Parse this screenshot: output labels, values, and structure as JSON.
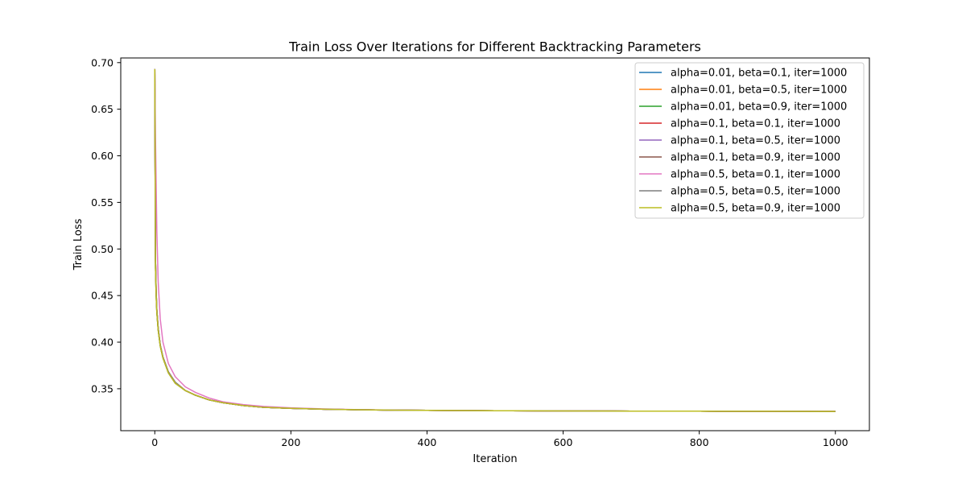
{
  "chart_data": {
    "type": "line",
    "title": "Train Loss Over Iterations for Different Backtracking Parameters",
    "xlabel": "Iteration",
    "ylabel": "Train Loss",
    "xlim": [
      -50,
      1050
    ],
    "ylim": [
      0.305,
      0.705
    ],
    "xticks": [
      0,
      200,
      400,
      600,
      800,
      1000
    ],
    "yticks": [
      0.35,
      0.4,
      0.45,
      0.5,
      0.55,
      0.6,
      0.65,
      0.7
    ],
    "ytick_labels": [
      "0.35",
      "0.40",
      "0.45",
      "0.50",
      "0.55",
      "0.60",
      "0.65",
      "0.70"
    ],
    "grid": false,
    "legend": "upper-right",
    "x": [
      0,
      1,
      2,
      3,
      5,
      8,
      12,
      20,
      30,
      45,
      60,
      80,
      100,
      130,
      160,
      200,
      250,
      300,
      350,
      400,
      450,
      500,
      600,
      700,
      800,
      900,
      1000
    ],
    "series": [
      {
        "name": "alpha=0.01, beta=0.1, iter=1000",
        "color": "#1f77b4",
        "values": [
          0.693,
          0.49,
          0.455,
          0.435,
          0.415,
          0.397,
          0.384,
          0.368,
          0.357,
          0.348,
          0.343,
          0.338,
          0.335,
          0.332,
          0.33,
          0.329,
          0.328,
          0.3275,
          0.327,
          0.3268,
          0.3266,
          0.3264,
          0.3262,
          0.326,
          0.3259,
          0.3258,
          0.3256
        ]
      },
      {
        "name": "alpha=0.01, beta=0.5, iter=1000",
        "color": "#ff7f0e",
        "values": [
          0.693,
          0.49,
          0.455,
          0.435,
          0.415,
          0.397,
          0.384,
          0.368,
          0.357,
          0.348,
          0.343,
          0.338,
          0.335,
          0.332,
          0.33,
          0.329,
          0.328,
          0.3275,
          0.327,
          0.3268,
          0.3266,
          0.3264,
          0.3262,
          0.326,
          0.3259,
          0.3258,
          0.3256
        ]
      },
      {
        "name": "alpha=0.01, beta=0.9, iter=1000",
        "color": "#2ca02c",
        "values": [
          0.693,
          0.48,
          0.45,
          0.432,
          0.413,
          0.396,
          0.383,
          0.367,
          0.356,
          0.348,
          0.343,
          0.338,
          0.335,
          0.332,
          0.33,
          0.329,
          0.328,
          0.3275,
          0.327,
          0.3268,
          0.3266,
          0.3264,
          0.3262,
          0.326,
          0.3259,
          0.3258,
          0.3256
        ]
      },
      {
        "name": "alpha=0.1, beta=0.1, iter=1000",
        "color": "#d62728",
        "values": [
          0.693,
          0.49,
          0.455,
          0.435,
          0.415,
          0.397,
          0.384,
          0.368,
          0.357,
          0.348,
          0.343,
          0.338,
          0.335,
          0.332,
          0.33,
          0.329,
          0.328,
          0.3275,
          0.327,
          0.3268,
          0.3266,
          0.3264,
          0.3262,
          0.326,
          0.3259,
          0.3258,
          0.3256
        ]
      },
      {
        "name": "alpha=0.1, beta=0.5, iter=1000",
        "color": "#9467bd",
        "values": [
          0.693,
          0.49,
          0.455,
          0.435,
          0.415,
          0.397,
          0.384,
          0.368,
          0.357,
          0.348,
          0.343,
          0.338,
          0.335,
          0.332,
          0.33,
          0.329,
          0.328,
          0.3275,
          0.327,
          0.3268,
          0.3266,
          0.3264,
          0.3262,
          0.326,
          0.3259,
          0.3258,
          0.3256
        ]
      },
      {
        "name": "alpha=0.1, beta=0.9, iter=1000",
        "color": "#8c564b",
        "values": [
          0.693,
          0.48,
          0.45,
          0.432,
          0.413,
          0.396,
          0.383,
          0.367,
          0.356,
          0.348,
          0.343,
          0.338,
          0.335,
          0.332,
          0.33,
          0.329,
          0.328,
          0.3275,
          0.327,
          0.3268,
          0.3266,
          0.3264,
          0.3262,
          0.326,
          0.3259,
          0.3258,
          0.3256
        ]
      },
      {
        "name": "alpha=0.5, beta=0.1, iter=1000",
        "color": "#e377c2",
        "values": [
          0.693,
          0.62,
          0.57,
          0.52,
          0.465,
          0.425,
          0.4,
          0.377,
          0.363,
          0.352,
          0.346,
          0.34,
          0.336,
          0.333,
          0.331,
          0.3295,
          0.3283,
          0.3276,
          0.3271,
          0.3268,
          0.3266,
          0.3264,
          0.3262,
          0.326,
          0.3259,
          0.3258,
          0.3256
        ]
      },
      {
        "name": "alpha=0.5, beta=0.5, iter=1000",
        "color": "#7f7f7f",
        "values": [
          0.693,
          0.49,
          0.455,
          0.435,
          0.415,
          0.397,
          0.384,
          0.368,
          0.357,
          0.348,
          0.343,
          0.338,
          0.335,
          0.332,
          0.33,
          0.329,
          0.328,
          0.3275,
          0.327,
          0.3268,
          0.3266,
          0.3264,
          0.3262,
          0.326,
          0.3259,
          0.3258,
          0.3256
        ]
      },
      {
        "name": "alpha=0.5, beta=0.9, iter=1000",
        "color": "#bcbd22",
        "values": [
          0.693,
          0.48,
          0.45,
          0.432,
          0.413,
          0.396,
          0.383,
          0.367,
          0.356,
          0.348,
          0.343,
          0.338,
          0.335,
          0.332,
          0.33,
          0.329,
          0.328,
          0.3275,
          0.327,
          0.3268,
          0.3266,
          0.3264,
          0.3262,
          0.326,
          0.3259,
          0.3258,
          0.3256
        ]
      }
    ]
  }
}
